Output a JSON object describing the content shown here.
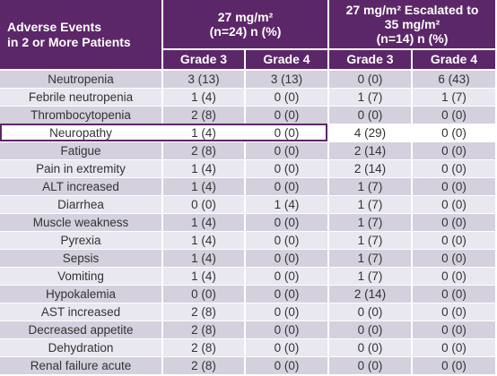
{
  "table": {
    "header": {
      "first": [
        "Adverse Events",
        "in 2 or More Patients"
      ],
      "groups": [
        [
          "27 mg/m²",
          "(n=24) n (%)"
        ],
        [
          "27 mg/m² Escalated to",
          "35 mg/m²",
          "(n=14) n (%)"
        ]
      ],
      "grades": [
        "Grade 3",
        "Grade 4",
        "Grade 3",
        "Grade 4"
      ]
    },
    "rows": [
      {
        "label": "Neutropenia",
        "cells": [
          "3 (13)",
          "3 (13)",
          "0 (0)",
          "6 (43)"
        ]
      },
      {
        "label": "Febrile neutropenia",
        "cells": [
          "1 (4)",
          "0 (0)",
          "1 (7)",
          "1 (7)"
        ]
      },
      {
        "label": "Thrombocytopenia",
        "cells": [
          "2 (8)",
          "0 (0)",
          "0 (0)",
          "0 (0)"
        ]
      },
      {
        "label": "Neuropathy",
        "cells": [
          "1 (4)",
          "0 (0)",
          "4 (29)",
          "0 (0)"
        ],
        "highlighted": true
      },
      {
        "label": "Fatigue",
        "cells": [
          "2 (8)",
          "0 (0)",
          "2 (14)",
          "0 (0)"
        ]
      },
      {
        "label": "Pain in extremity",
        "cells": [
          "1 (4)",
          "0 (0)",
          "2 (14)",
          "0 (0)"
        ]
      },
      {
        "label": "ALT increased",
        "cells": [
          "1 (4)",
          "0 (0)",
          "1 (7)",
          "0 (0)"
        ]
      },
      {
        "label": "Diarrhea",
        "cells": [
          "0 (0)",
          "1 (4)",
          "1 (7)",
          "0 (0)"
        ]
      },
      {
        "label": "Muscle weakness",
        "cells": [
          "1 (4)",
          "0 (0)",
          "1 (7)",
          "0 (0)"
        ]
      },
      {
        "label": "Pyrexia",
        "cells": [
          "1 (4)",
          "0 (0)",
          "1 (7)",
          "0 (0)"
        ]
      },
      {
        "label": "Sepsis",
        "cells": [
          "1 (4)",
          "0 (0)",
          "1 (7)",
          "0 (0)"
        ]
      },
      {
        "label": "Vomiting",
        "cells": [
          "1 (4)",
          "0 (0)",
          "1 (7)",
          "0 (0)"
        ]
      },
      {
        "label": "Hypokalemia",
        "cells": [
          "0 (0)",
          "0 (0)",
          "2 (14)",
          "0 (0)"
        ]
      },
      {
        "label": "AST increased",
        "cells": [
          "2 (8)",
          "0 (0)",
          "0 (0)",
          "0 (0)"
        ]
      },
      {
        "label": "Decreased appetite",
        "cells": [
          "2 (8)",
          "0 (0)",
          "0 (0)",
          "0 (0)"
        ]
      },
      {
        "label": "Dehydration",
        "cells": [
          "2 (8)",
          "0 (0)",
          "0 (0)",
          "0 (0)"
        ]
      },
      {
        "label": "Renal failure acute",
        "cells": [
          "2 (8)",
          "0 (0)",
          "0 (0)",
          "0 (0)"
        ]
      }
    ]
  }
}
